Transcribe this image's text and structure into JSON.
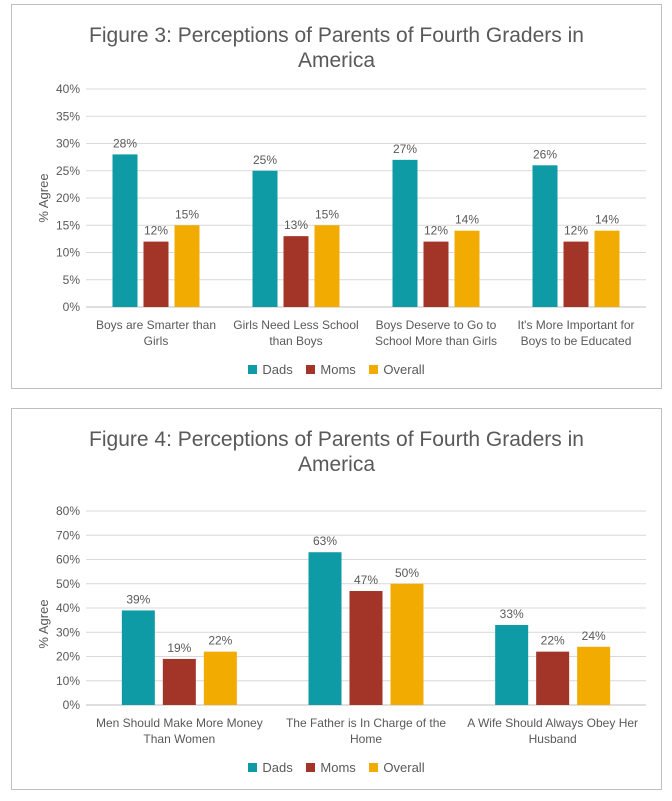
{
  "colors": {
    "Dads": "#0e9ba5",
    "Moms": "#a23428",
    "Overall": "#f2ab00",
    "grid": "#d9d9d9",
    "text": "#595959"
  },
  "chart_data": [
    {
      "type": "bar",
      "title": "Figure 3: Perceptions of Parents of Fourth Graders in America",
      "xlabel": "",
      "ylabel": "% Agree",
      "ylim": [
        0,
        40
      ],
      "yticks": [
        "0%",
        "5%",
        "10%",
        "15%",
        "20%",
        "25%",
        "30%",
        "35%",
        "40%"
      ],
      "categories": [
        [
          "Boys are Smarter than",
          "Girls"
        ],
        [
          "Girls Need Less School",
          "than Boys"
        ],
        [
          "Boys Deserve to Go to",
          "School More than Girls"
        ],
        [
          "It's More Important for",
          "Boys to be Educated"
        ]
      ],
      "series": [
        {
          "name": "Dads",
          "values": [
            28,
            25,
            27,
            26
          ],
          "labels": [
            "28%",
            "25%",
            "27%",
            "26%"
          ]
        },
        {
          "name": "Moms",
          "values": [
            12,
            13,
            12,
            12
          ],
          "labels": [
            "12%",
            "13%",
            "12%",
            "12%"
          ]
        },
        {
          "name": "Overall",
          "values": [
            15,
            15,
            14,
            14
          ],
          "labels": [
            "15%",
            "15%",
            "14%",
            "14%"
          ]
        }
      ],
      "grid": true,
      "legend": "bottom"
    },
    {
      "type": "bar",
      "title": "Figure 4: Perceptions of Parents of Fourth Graders in America",
      "xlabel": "",
      "ylabel": "% Agree",
      "ylim": [
        0,
        80
      ],
      "yticks": [
        "0%",
        "10%",
        "20%",
        "30%",
        "40%",
        "50%",
        "60%",
        "70%",
        "80%"
      ],
      "categories": [
        [
          "Men Should Make More Money",
          "Than Women"
        ],
        [
          "The Father is In Charge of the",
          "Home"
        ],
        [
          "A Wife Should Always Obey Her",
          "Husband"
        ]
      ],
      "series": [
        {
          "name": "Dads",
          "values": [
            39,
            63,
            33
          ],
          "labels": [
            "39%",
            "63%",
            "33%"
          ]
        },
        {
          "name": "Moms",
          "values": [
            19,
            47,
            22
          ],
          "labels": [
            "19%",
            "47%",
            "22%"
          ]
        },
        {
          "name": "Overall",
          "values": [
            22,
            50,
            24
          ],
          "labels": [
            "22%",
            "50%",
            "24%"
          ]
        }
      ],
      "grid": true,
      "legend": "bottom"
    }
  ]
}
